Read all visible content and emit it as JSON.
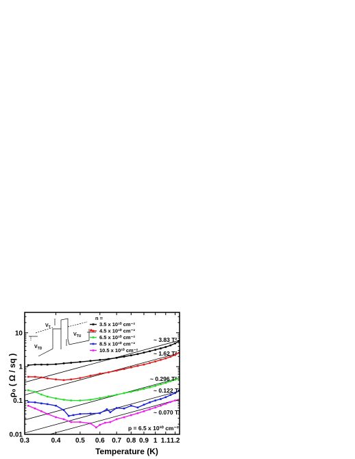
{
  "chart_data": {
    "type": "line",
    "xlabel": "Temperature (K)",
    "ylabel": "ρ₀ ( Ω / sq )",
    "xscale": "log",
    "yscale": "log",
    "xlim": [
      0.3,
      1.25
    ],
    "ylim": [
      0.01,
      40
    ],
    "x_ticks": [
      0.3,
      0.4,
      0.5,
      0.6,
      0.7,
      0.8,
      0.9,
      1,
      1.1,
      1.2
    ],
    "x_tick_labels": [
      "0.3",
      "0.4",
      "0.5",
      "0.6",
      "0.7",
      "0.8",
      "0.9",
      "1",
      "1.1",
      "1.2"
    ],
    "y_ticks": [
      0.01,
      0.1,
      1,
      10
    ],
    "y_tick_labels": [
      "0.01",
      "0.1",
      "1",
      "10"
    ],
    "legend_title": "n =",
    "legend_position": "top-right",
    "series": [
      {
        "name": "3.5 x 10¹⁰ cm⁻²",
        "color": "#000000",
        "x": [
          0.31,
          0.33,
          0.35,
          0.37,
          0.4,
          0.43,
          0.46,
          0.5,
          0.55,
          0.6,
          0.65,
          0.7,
          0.75,
          0.8,
          0.85,
          0.9,
          0.95,
          1.0,
          1.05,
          1.1,
          1.15,
          1.2,
          1.24
        ],
        "y": [
          1.1,
          1.15,
          1.15,
          1.15,
          1.18,
          1.25,
          1.3,
          1.38,
          1.48,
          1.58,
          1.68,
          1.82,
          1.98,
          2.15,
          2.35,
          2.6,
          2.85,
          3.15,
          3.45,
          3.8,
          4.25,
          4.85,
          5.6
        ]
      },
      {
        "name": "4.5 x 10¹⁰ cm⁻²",
        "color": "#e01818",
        "x": [
          0.31,
          0.33,
          0.35,
          0.37,
          0.4,
          0.43,
          0.46,
          0.5,
          0.55,
          0.6,
          0.65,
          0.7,
          0.75,
          0.8,
          0.85,
          0.9,
          0.95,
          1.0,
          1.05,
          1.1,
          1.15,
          1.2,
          1.24
        ],
        "y": [
          0.5,
          0.5,
          0.48,
          0.45,
          0.42,
          0.4,
          0.42,
          0.46,
          0.54,
          0.62,
          0.68,
          0.76,
          0.85,
          0.95,
          1.05,
          1.15,
          1.28,
          1.42,
          1.58,
          1.75,
          1.95,
          2.2,
          2.55
        ]
      },
      {
        "name": "6.5 x 10¹⁰ cm⁻²",
        "color": "#22dd22",
        "x": [
          0.31,
          0.33,
          0.35,
          0.37,
          0.4,
          0.43,
          0.46,
          0.5,
          0.55,
          0.6,
          0.65,
          0.7,
          0.75,
          0.8,
          0.85,
          0.9,
          0.95,
          1.0,
          1.05,
          1.1,
          1.15,
          1.2,
          1.24
        ],
        "y": [
          0.2,
          0.18,
          0.15,
          0.13,
          0.115,
          0.105,
          0.1,
          0.1,
          0.105,
          0.118,
          0.133,
          0.148,
          0.165,
          0.18,
          0.2,
          0.22,
          0.245,
          0.27,
          0.3,
          0.33,
          0.37,
          0.41,
          0.45
        ]
      },
      {
        "name": "8.5 x 10¹⁰ cm⁻²",
        "color": "#1820d8",
        "x": [
          0.31,
          0.33,
          0.35,
          0.37,
          0.4,
          0.43,
          0.45,
          0.47,
          0.5,
          0.55,
          0.6,
          0.64,
          0.66,
          0.7,
          0.75,
          0.8,
          0.85,
          0.9,
          0.95,
          1.0,
          1.05,
          1.1,
          1.15,
          1.2,
          1.24
        ],
        "y": [
          0.09,
          0.088,
          0.082,
          0.078,
          0.07,
          0.052,
          0.035,
          0.037,
          0.04,
          0.041,
          0.042,
          0.055,
          0.045,
          0.06,
          0.058,
          0.07,
          0.062,
          0.075,
          0.088,
          0.1,
          0.11,
          0.125,
          0.145,
          0.165,
          0.19
        ]
      },
      {
        "name": "10.5 x 10¹⁰ cm⁻²",
        "color": "#ee18ee",
        "x": [
          0.31,
          0.33,
          0.35,
          0.37,
          0.4,
          0.43,
          0.46,
          0.5,
          0.55,
          0.58,
          0.6,
          0.63,
          0.66,
          0.7,
          0.75,
          0.8,
          0.85,
          0.9,
          0.95,
          1.0,
          1.05,
          1.1,
          1.15,
          1.2,
          1.24
        ],
        "y": [
          0.07,
          0.058,
          0.048,
          0.04,
          0.032,
          0.028,
          0.023,
          0.023,
          0.021,
          0.016,
          0.019,
          0.022,
          0.023,
          0.028,
          0.032,
          0.037,
          0.042,
          0.048,
          0.055,
          0.062,
          0.07,
          0.08,
          0.09,
          0.1,
          0.105
        ]
      }
    ],
    "fits": [
      {
        "coef": 3.83,
        "label": "~ 3.83 T²"
      },
      {
        "coef": 1.62,
        "label": "~ 1.62 T²"
      },
      {
        "coef": 0.296,
        "label": "~ 0.296 T²"
      },
      {
        "coef": 0.122,
        "label": "~ 0.122 T²"
      },
      {
        "coef": 0.07,
        "label": "~ 0.070 T²"
      }
    ],
    "annotation": "p = 6.5 x 10¹⁰ cm⁻²",
    "inset": {
      "label_vt": "V",
      "label_vt_sub": "T",
      "label_vtd": "V",
      "label_vtd_sub": "TD",
      "label_vtu": "V",
      "label_vtu_sub": "TU"
    }
  }
}
